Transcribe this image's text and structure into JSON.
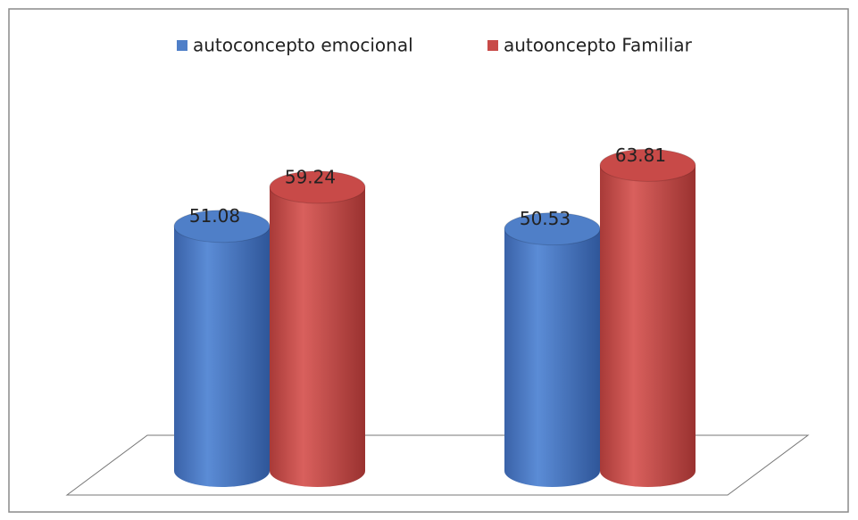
{
  "chart_data": {
    "type": "cylinder-bar",
    "categories": [
      null,
      null
    ],
    "series": [
      {
        "name": "autoconcepto emocional",
        "color": "#4f7fc8",
        "values": [
          51.08,
          50.53
        ]
      },
      {
        "name": "autoonceptо Familiar",
        "color": "#c84a48",
        "values": [
          59.24,
          63.81
        ]
      }
    ],
    "legend": "top"
  }
}
